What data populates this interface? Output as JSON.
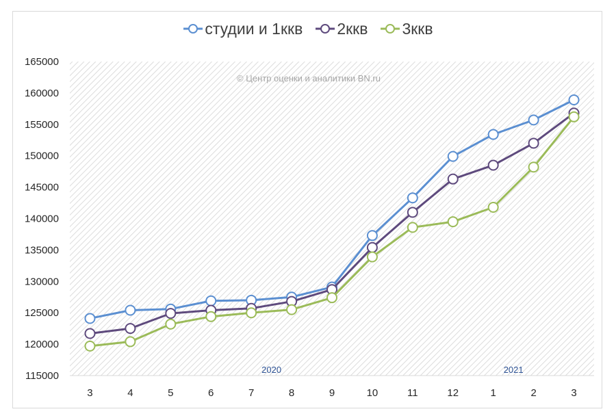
{
  "chart_data": {
    "type": "line",
    "title": "",
    "xlabel": "",
    "ylabel": "",
    "x": [
      "3",
      "4",
      "5",
      "6",
      "7",
      "8",
      "9",
      "10",
      "11",
      "12",
      "1",
      "2",
      "3"
    ],
    "year_labels": [
      {
        "text": "2020",
        "after_index": 4.5
      },
      {
        "text": "2021",
        "after_index": 10.5
      }
    ],
    "ylim": [
      115000,
      165000
    ],
    "yticks": [
      115000,
      120000,
      125000,
      130000,
      135000,
      140000,
      145000,
      150000,
      155000,
      160000,
      165000
    ],
    "grid": "diagonal-hatched",
    "legend": "top-center",
    "watermark": "© Центр оценки и аналитики BN.ru",
    "series": [
      {
        "name": "студии и 1ккв",
        "color": "#5b8fd1",
        "values": [
          124100,
          125400,
          125600,
          126900,
          127000,
          127500,
          129100,
          137300,
          143300,
          149900,
          153400,
          155700,
          158900
        ]
      },
      {
        "name": "2ккв",
        "color": "#5e4a7d",
        "values": [
          121700,
          122500,
          124900,
          125400,
          125700,
          126800,
          128700,
          135400,
          141000,
          146300,
          148500,
          152000,
          156800
        ]
      },
      {
        "name": "3ккв",
        "color": "#9bbb59",
        "values": [
          119700,
          120400,
          123200,
          124400,
          125000,
          125500,
          127400,
          133900,
          138600,
          139500,
          141800,
          148200,
          156200
        ]
      }
    ]
  }
}
